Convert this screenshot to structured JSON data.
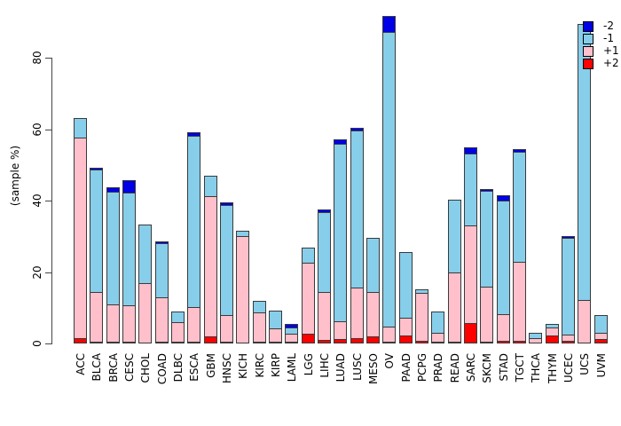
{
  "chart_data": {
    "type": "bar",
    "stacked": true,
    "title": "",
    "xlabel": "",
    "ylabel": "(sample %)",
    "yticks": [
      0,
      20,
      40,
      60,
      80
    ],
    "ylim": [
      0,
      93
    ],
    "grid": false,
    "legend_position": "top-right",
    "categories": [
      "ACC",
      "BLCA",
      "BRCA",
      "CESC",
      "CHOL",
      "COAD",
      "DLBC",
      "ESCA",
      "GBM",
      "HNSC",
      "KICH",
      "KIRC",
      "KIRP",
      "LAML",
      "LGG",
      "LIHC",
      "LUAD",
      "LUSC",
      "MESO",
      "OV",
      "PAAD",
      "PCPG",
      "PRAD",
      "READ",
      "SARC",
      "SKCM",
      "STAD",
      "TGCT",
      "THCA",
      "THYM",
      "UCEC",
      "UCS",
      "UVM"
    ],
    "series": [
      {
        "name": "-2",
        "color": "#0000E6",
        "values": [
          0,
          0.8,
          1.4,
          3.8,
          0,
          0.8,
          0,
          1.3,
          0,
          0.9,
          0,
          0,
          0,
          1.2,
          0,
          1.1,
          1.5,
          0.9,
          0,
          4.7,
          0,
          0,
          0,
          0,
          2.1,
          0.8,
          1.8,
          0.9,
          0,
          0,
          0.8,
          0,
          0
        ]
      },
      {
        "name": "-1",
        "color": "#87CEEB",
        "values": [
          5.7,
          34.5,
          31.9,
          31.8,
          16.7,
          15.3,
          3.2,
          48.2,
          5.9,
          31.1,
          1.7,
          3.6,
          5.1,
          2.1,
          4.6,
          22.6,
          50.0,
          44.3,
          15.5,
          82.8,
          18.7,
          1.3,
          6.3,
          20.7,
          20.5,
          27.1,
          32.1,
          31.1,
          1.8,
          1.3,
          27.3,
          77.5,
          5.3
        ]
      },
      {
        "name": "+1",
        "color": "#FFC0CB",
        "values": [
          56.4,
          14.2,
          10.7,
          10.4,
          16.8,
          12.6,
          5.6,
          10.0,
          39.6,
          7.7,
          30.2,
          8.5,
          3.9,
          2.6,
          20.1,
          13.8,
          5.1,
          14.4,
          12.6,
          4.4,
          5.1,
          13.6,
          2.7,
          19.6,
          27.5,
          15.6,
          7.8,
          22.5,
          1.4,
          2.4,
          1.9,
          12.3,
          2.1
        ]
      },
      {
        "name": "+2",
        "color": "#FF0000",
        "values": [
          1.5,
          0.4,
          0.2,
          0.6,
          0,
          0.3,
          0.2,
          0.3,
          1.9,
          0.3,
          0,
          0.3,
          0.2,
          0.3,
          2.7,
          1.0,
          1.2,
          1.4,
          1.9,
          0.3,
          2.2,
          0.8,
          0.2,
          0.2,
          5.8,
          0.3,
          0.7,
          0.7,
          0,
          2.2,
          0.8,
          0,
          1.2
        ]
      }
    ]
  },
  "layout_colors": {
    "axis": "#454545",
    "segment_border": "#3a3a3a",
    "background": "#ffffff"
  }
}
